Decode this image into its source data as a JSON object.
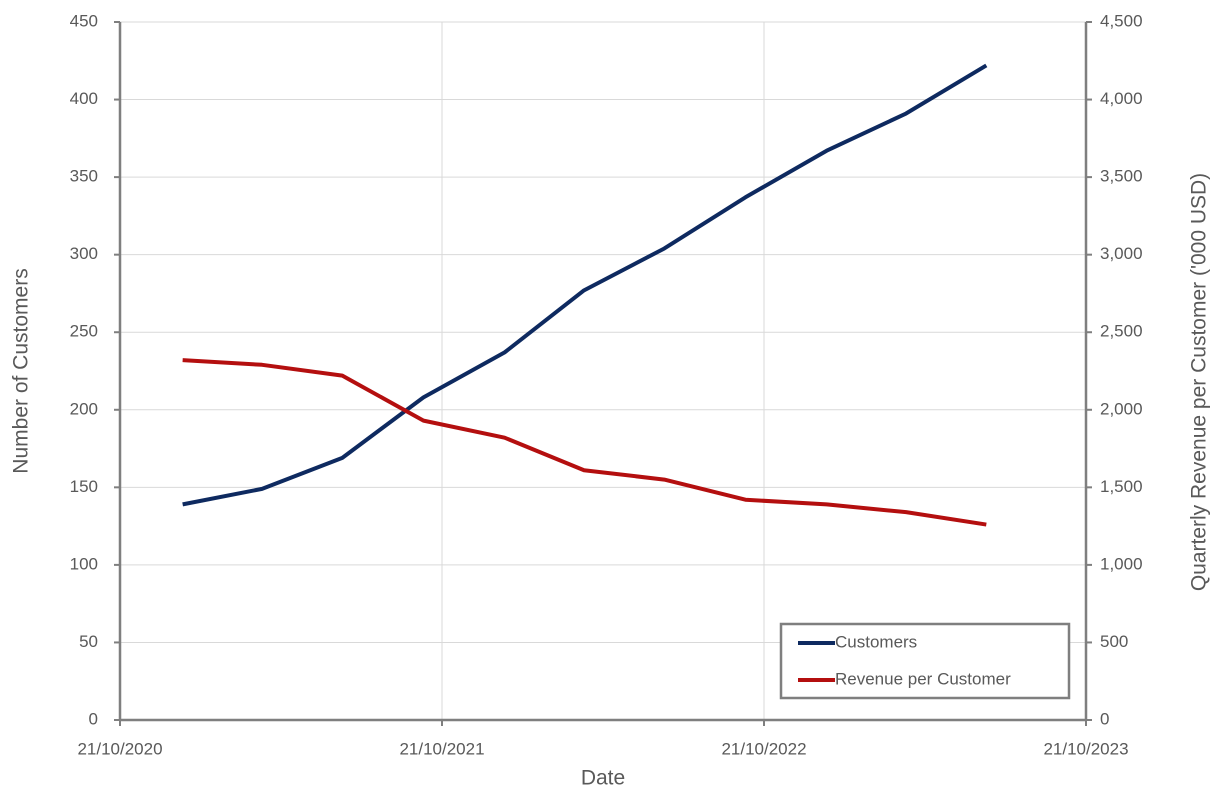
{
  "chart_data": {
    "type": "line",
    "x_label": "Date",
    "y_label": "Number of Customers",
    "y2_label": "Quarterly Revenue per Customer ('000 USD)",
    "x": [
      "31/12/2020",
      "31/03/2021",
      "30/06/2021",
      "30/09/2021",
      "31/12/2021",
      "31/03/2022",
      "30/06/2022",
      "30/09/2022",
      "31/12/2022",
      "31/03/2023",
      "30/06/2023"
    ],
    "series": [
      {
        "name": "Customers",
        "color": "#0e2a60",
        "values": [
          139,
          149,
          169,
          208,
          237,
          277,
          304,
          337,
          367,
          391,
          422
        ]
      },
      {
        "name": "Revenue per Customer",
        "color": "#b40f0f",
        "axis": "y2",
        "values": [
          2320,
          2290,
          2220,
          1930,
          1820,
          1610,
          1550,
          1420,
          1390,
          1340,
          1260
        ]
      }
    ],
    "xlim": [
      "21/10/2020",
      "21/10/2023"
    ],
    "xticks": [
      "21/10/2020",
      "21/10/2021",
      "21/10/2022",
      "21/10/2023"
    ],
    "ylim": [
      0,
      450
    ],
    "yticks": [
      0,
      50,
      100,
      150,
      200,
      250,
      300,
      350,
      400,
      450
    ],
    "y2lim": [
      0,
      4500
    ],
    "y2ticks": [
      0,
      500,
      {
        "value": 1000,
        "label": "1,000"
      },
      {
        "value": 1500,
        "label": "1,500"
      },
      {
        "value": 2000,
        "label": "2,000"
      },
      {
        "value": 2500,
        "label": "2,500"
      },
      {
        "value": 3000,
        "label": "3,000"
      },
      {
        "value": 3500,
        "label": "3,500"
      },
      {
        "value": 4000,
        "label": "4,000"
      },
      {
        "value": 4500,
        "label": "4,500"
      }
    ],
    "grid": true,
    "legend": "bottom-right"
  }
}
